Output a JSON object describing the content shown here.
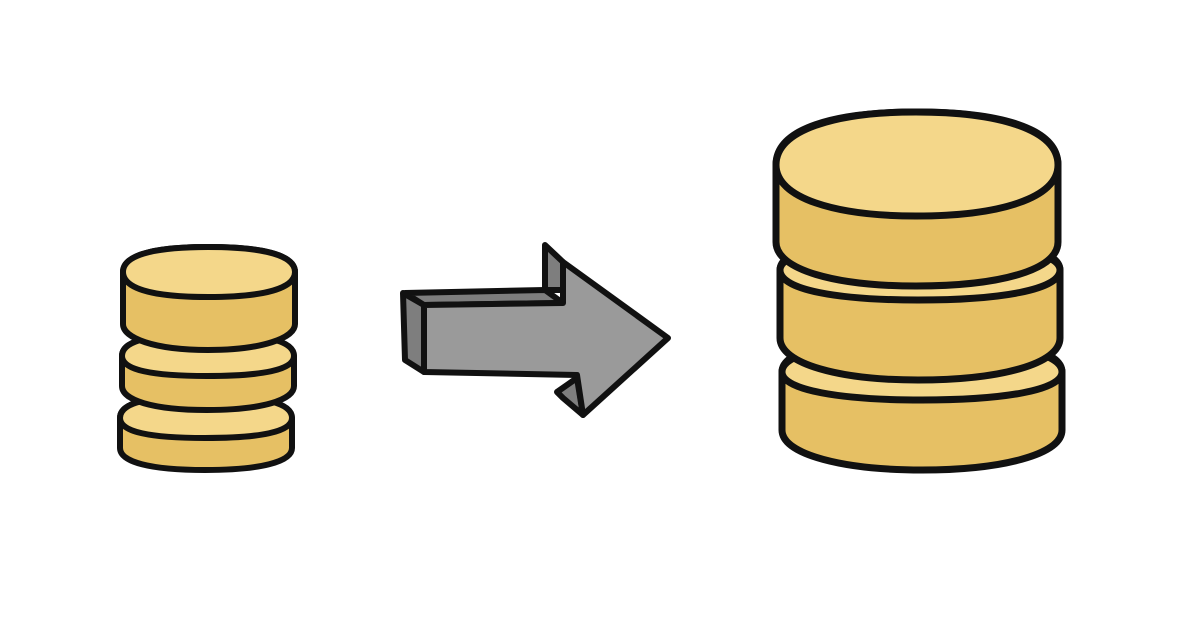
{
  "scene": {
    "background_color": "#ffffff",
    "stroke_color": "#111111",
    "coin_side_color": "#e6c064",
    "coin_top_color": "#f4d78a",
    "arrow_front_color": "#9a9a9a",
    "arrow_side_color": "#7e7e7e",
    "small_stack": {
      "coin_count": 3,
      "icon": "coin-stack-icon"
    },
    "arrow": {
      "icon": "arrow-right-icon"
    },
    "large_stack": {
      "coin_count": 3,
      "icon": "coin-stack-icon"
    }
  }
}
